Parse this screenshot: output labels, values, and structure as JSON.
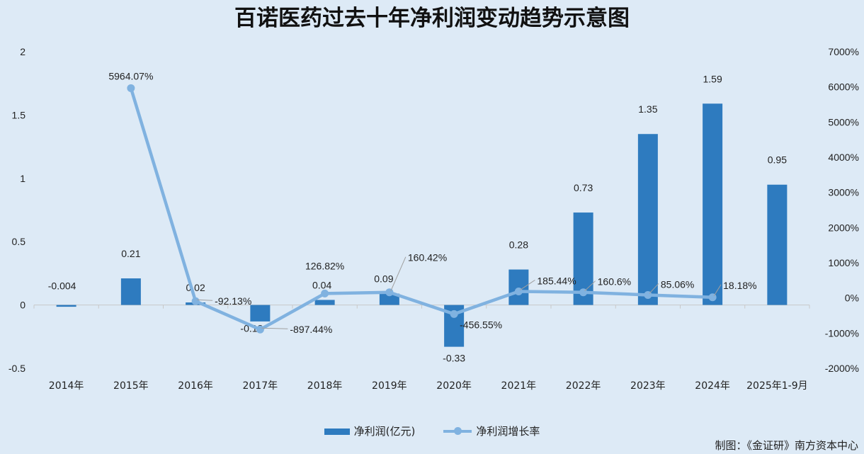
{
  "chart_data": {
    "type": "bar",
    "title": "百诺医药过去十年净利润变动趋势示意图",
    "categories": [
      "2014年",
      "2015年",
      "2016年",
      "2017年",
      "2018年",
      "2019年",
      "2020年",
      "2021年",
      "2022年",
      "2023年",
      "2024年",
      "2025年1-9月"
    ],
    "series": [
      {
        "name": "净利润(亿元)",
        "type": "bar",
        "axis": "left",
        "color": "#2e7bbf",
        "values": [
          -0.004,
          0.21,
          0.02,
          -0.13,
          0.04,
          0.09,
          -0.33,
          0.28,
          0.73,
          1.35,
          1.59,
          0.95
        ],
        "labels": [
          "-0.004",
          "0.21",
          "0.02",
          "-0.13",
          "0.04",
          "0.09",
          "-0.33",
          "0.28",
          "0.73",
          "1.35",
          "1.59",
          "0.95"
        ]
      },
      {
        "name": "净利润增长率",
        "type": "line",
        "axis": "right",
        "color": "#80b2e0",
        "values": [
          null,
          5964.07,
          -92.13,
          -897.44,
          126.82,
          160.42,
          -456.55,
          185.44,
          160.6,
          85.06,
          18.18,
          null
        ],
        "labels": [
          "",
          "5964.07%",
          "-92.13%",
          "-897.44%",
          "126.82%",
          "160.42%",
          "-456.55%",
          "185.44%",
          "160.6%",
          "85.06%",
          "18.18%",
          ""
        ]
      }
    ],
    "left_axis": {
      "range": [
        -0.5,
        2
      ],
      "ticks": [
        "-0.5",
        "0",
        "0.5",
        "1",
        "1.5",
        "2"
      ],
      "tick_values": [
        -0.5,
        0,
        0.5,
        1,
        1.5,
        2
      ]
    },
    "right_axis": {
      "range": [
        -2000,
        7000
      ],
      "ticks": [
        "-2000%",
        "-1000%",
        "0%",
        "1000%",
        "2000%",
        "3000%",
        "4000%",
        "5000%",
        "6000%",
        "7000%"
      ],
      "tick_values": [
        -2000,
        -1000,
        0,
        1000,
        2000,
        3000,
        4000,
        5000,
        6000,
        7000
      ]
    },
    "grid": false,
    "legend": "bottom"
  },
  "legend": {
    "bar": "净利润(亿元)",
    "line": "净利润增长率"
  },
  "source": "制图：《金证研》南方资本中心"
}
